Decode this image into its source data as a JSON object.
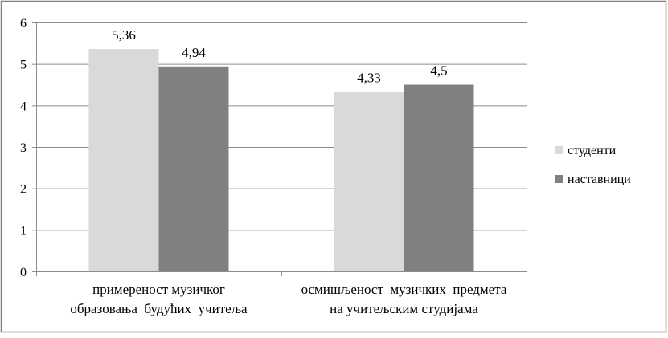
{
  "chart_data": {
    "type": "bar",
    "categories": [
      [
        "примереност музичког",
        "образовања  будућих  учитеља"
      ],
      [
        "осмишљеност  музичких  предмета",
        "на учитељским студијама"
      ]
    ],
    "series": [
      {
        "name": "студенти",
        "values": [
          5.36,
          4.33
        ],
        "labels": [
          "5,36",
          "4,33"
        ],
        "color": "#d9d9d9"
      },
      {
        "name": "наставници",
        "values": [
          4.94,
          4.5
        ],
        "labels": [
          "4,94",
          "4,5"
        ],
        "color": "#808080"
      }
    ],
    "ylim": [
      0,
      6
    ],
    "yticks": [
      "0",
      "1",
      "2",
      "3",
      "4",
      "5",
      "6"
    ],
    "grid": true,
    "legend_position": "right",
    "colors": {
      "gridline": "#8c8c8c",
      "axis": "#8c8c8c",
      "frame": "#7f7f7f",
      "background": "#ffffff"
    }
  }
}
